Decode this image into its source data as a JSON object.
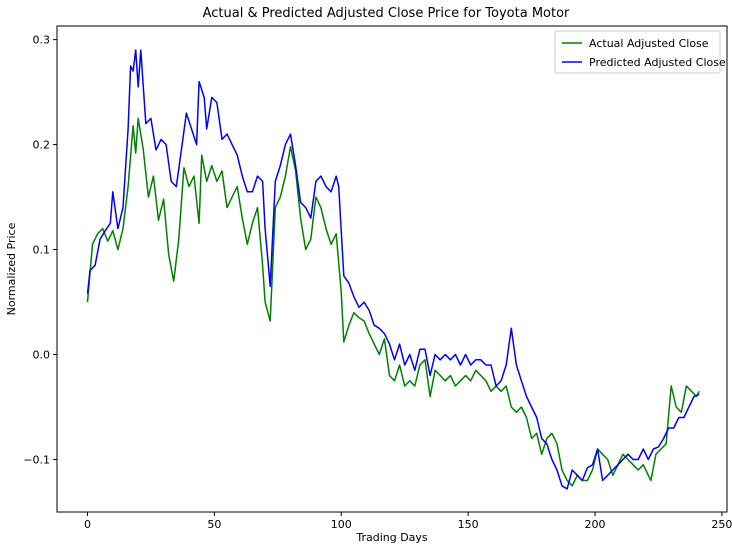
{
  "chart_data": {
    "type": "line",
    "title": "Actual & Predicted Adjusted Close Price for Toyota Motor",
    "xlabel": "Trading Days",
    "ylabel": "Normalized Price",
    "xlim": [
      -12,
      252
    ],
    "ylim": [
      -0.15,
      0.313
    ],
    "xticks": [
      0,
      50,
      100,
      150,
      200,
      250
    ],
    "xtick_labels": [
      "0",
      "50",
      "100",
      "150",
      "200",
      "250"
    ],
    "yticks": [
      -0.1,
      0.0,
      0.1,
      0.2,
      0.3
    ],
    "ytick_labels": [
      "−0.1",
      "0.0",
      "0.1",
      "0.2",
      "0.3"
    ],
    "grid": false,
    "legend_position": "top-right",
    "series": [
      {
        "name": "Actual Adjusted Close",
        "color": "#008000",
        "points": [
          [
            0,
            0.05
          ],
          [
            2,
            0.105
          ],
          [
            4,
            0.115
          ],
          [
            6,
            0.12
          ],
          [
            8,
            0.108
          ],
          [
            10,
            0.118
          ],
          [
            12,
            0.1
          ],
          [
            14,
            0.12
          ],
          [
            16,
            0.16
          ],
          [
            18,
            0.218
          ],
          [
            19,
            0.192
          ],
          [
            20,
            0.225
          ],
          [
            22,
            0.195
          ],
          [
            24,
            0.15
          ],
          [
            26,
            0.17
          ],
          [
            28,
            0.128
          ],
          [
            30,
            0.148
          ],
          [
            32,
            0.095
          ],
          [
            34,
            0.07
          ],
          [
            36,
            0.11
          ],
          [
            38,
            0.178
          ],
          [
            40,
            0.16
          ],
          [
            42,
            0.17
          ],
          [
            44,
            0.125
          ],
          [
            45,
            0.19
          ],
          [
            47,
            0.165
          ],
          [
            49,
            0.18
          ],
          [
            51,
            0.165
          ],
          [
            53,
            0.175
          ],
          [
            55,
            0.14
          ],
          [
            57,
            0.15
          ],
          [
            59,
            0.16
          ],
          [
            61,
            0.13
          ],
          [
            63,
            0.105
          ],
          [
            65,
            0.125
          ],
          [
            67,
            0.14
          ],
          [
            69,
            0.085
          ],
          [
            70,
            0.05
          ],
          [
            72,
            0.032
          ],
          [
            74,
            0.14
          ],
          [
            76,
            0.15
          ],
          [
            78,
            0.17
          ],
          [
            80,
            0.198
          ],
          [
            82,
            0.175
          ],
          [
            84,
            0.13
          ],
          [
            86,
            0.1
          ],
          [
            88,
            0.11
          ],
          [
            90,
            0.15
          ],
          [
            92,
            0.14
          ],
          [
            94,
            0.12
          ],
          [
            96,
            0.105
          ],
          [
            98,
            0.115
          ],
          [
            100,
            0.06
          ],
          [
            101,
            0.012
          ],
          [
            103,
            0.028
          ],
          [
            105,
            0.04
          ],
          [
            107,
            0.035
          ],
          [
            109,
            0.032
          ],
          [
            111,
            0.02
          ],
          [
            113,
            0.01
          ],
          [
            115,
            0.0
          ],
          [
            117,
            0.015
          ],
          [
            119,
            -0.02
          ],
          [
            121,
            -0.025
          ],
          [
            123,
            -0.01
          ],
          [
            125,
            -0.03
          ],
          [
            127,
            -0.025
          ],
          [
            129,
            -0.03
          ],
          [
            131,
            -0.01
          ],
          [
            133,
            -0.005
          ],
          [
            135,
            -0.04
          ],
          [
            137,
            -0.015
          ],
          [
            139,
            -0.02
          ],
          [
            141,
            -0.025
          ],
          [
            143,
            -0.02
          ],
          [
            145,
            -0.03
          ],
          [
            147,
            -0.025
          ],
          [
            149,
            -0.02
          ],
          [
            151,
            -0.025
          ],
          [
            153,
            -0.015
          ],
          [
            155,
            -0.02
          ],
          [
            157,
            -0.025
          ],
          [
            159,
            -0.035
          ],
          [
            161,
            -0.03
          ],
          [
            163,
            -0.035
          ],
          [
            165,
            -0.03
          ],
          [
            167,
            -0.05
          ],
          [
            169,
            -0.055
          ],
          [
            171,
            -0.05
          ],
          [
            173,
            -0.06
          ],
          [
            175,
            -0.08
          ],
          [
            177,
            -0.075
          ],
          [
            179,
            -0.095
          ],
          [
            181,
            -0.08
          ],
          [
            183,
            -0.075
          ],
          [
            185,
            -0.085
          ],
          [
            187,
            -0.11
          ],
          [
            189,
            -0.12
          ],
          [
            191,
            -0.125
          ],
          [
            193,
            -0.115
          ],
          [
            195,
            -0.12
          ],
          [
            197,
            -0.12
          ],
          [
            199,
            -0.11
          ],
          [
            201,
            -0.09
          ],
          [
            203,
            -0.095
          ],
          [
            205,
            -0.1
          ],
          [
            207,
            -0.115
          ],
          [
            209,
            -0.105
          ],
          [
            211,
            -0.095
          ],
          [
            213,
            -0.1
          ],
          [
            215,
            -0.105
          ],
          [
            217,
            -0.11
          ],
          [
            219,
            -0.105
          ],
          [
            221,
            -0.115
          ],
          [
            222,
            -0.12
          ],
          [
            224,
            -0.095
          ],
          [
            226,
            -0.09
          ],
          [
            228,
            -0.085
          ],
          [
            230,
            -0.03
          ],
          [
            232,
            -0.05
          ],
          [
            234,
            -0.055
          ],
          [
            236,
            -0.03
          ],
          [
            238,
            -0.035
          ],
          [
            240,
            -0.04
          ],
          [
            241,
            -0.035
          ]
        ]
      },
      {
        "name": "Predicted Adjusted Close",
        "color": "#0000ff",
        "points": [
          [
            0,
            0.058
          ],
          [
            1,
            0.08
          ],
          [
            3,
            0.085
          ],
          [
            5,
            0.11
          ],
          [
            7,
            0.118
          ],
          [
            9,
            0.125
          ],
          [
            10,
            0.155
          ],
          [
            12,
            0.12
          ],
          [
            14,
            0.14
          ],
          [
            16,
            0.215
          ],
          [
            17,
            0.275
          ],
          [
            18,
            0.27
          ],
          [
            19,
            0.29
          ],
          [
            20,
            0.255
          ],
          [
            21,
            0.29
          ],
          [
            23,
            0.22
          ],
          [
            25,
            0.225
          ],
          [
            27,
            0.195
          ],
          [
            29,
            0.205
          ],
          [
            31,
            0.2
          ],
          [
            33,
            0.165
          ],
          [
            35,
            0.16
          ],
          [
            37,
            0.195
          ],
          [
            39,
            0.23
          ],
          [
            41,
            0.215
          ],
          [
            43,
            0.2
          ],
          [
            44,
            0.26
          ],
          [
            46,
            0.245
          ],
          [
            47,
            0.215
          ],
          [
            49,
            0.245
          ],
          [
            51,
            0.24
          ],
          [
            53,
            0.205
          ],
          [
            55,
            0.21
          ],
          [
            57,
            0.2
          ],
          [
            59,
            0.19
          ],
          [
            61,
            0.17
          ],
          [
            63,
            0.155
          ],
          [
            65,
            0.155
          ],
          [
            67,
            0.17
          ],
          [
            69,
            0.165
          ],
          [
            70,
            0.12
          ],
          [
            72,
            0.065
          ],
          [
            74,
            0.165
          ],
          [
            76,
            0.18
          ],
          [
            78,
            0.2
          ],
          [
            80,
            0.21
          ],
          [
            82,
            0.18
          ],
          [
            84,
            0.145
          ],
          [
            86,
            0.14
          ],
          [
            88,
            0.13
          ],
          [
            90,
            0.165
          ],
          [
            92,
            0.17
          ],
          [
            94,
            0.16
          ],
          [
            96,
            0.155
          ],
          [
            98,
            0.17
          ],
          [
            99,
            0.16
          ],
          [
            101,
            0.075
          ],
          [
            103,
            0.068
          ],
          [
            105,
            0.055
          ],
          [
            107,
            0.045
          ],
          [
            109,
            0.05
          ],
          [
            111,
            0.042
          ],
          [
            113,
            0.028
          ],
          [
            115,
            0.025
          ],
          [
            117,
            0.02
          ],
          [
            119,
            0.01
          ],
          [
            121,
            -0.005
          ],
          [
            123,
            0.01
          ],
          [
            125,
            -0.01
          ],
          [
            127,
            0.0
          ],
          [
            129,
            -0.015
          ],
          [
            131,
            0.005
          ],
          [
            133,
            0.005
          ],
          [
            135,
            -0.02
          ],
          [
            137,
            0.0
          ],
          [
            139,
            -0.005
          ],
          [
            141,
            0.0
          ],
          [
            143,
            -0.005
          ],
          [
            145,
            0.0
          ],
          [
            147,
            -0.01
          ],
          [
            149,
            0.0
          ],
          [
            151,
            -0.01
          ],
          [
            153,
            -0.005
          ],
          [
            155,
            -0.005
          ],
          [
            157,
            -0.01
          ],
          [
            159,
            -0.01
          ],
          [
            161,
            -0.03
          ],
          [
            163,
            -0.025
          ],
          [
            165,
            -0.01
          ],
          [
            167,
            0.025
          ],
          [
            169,
            -0.01
          ],
          [
            171,
            -0.025
          ],
          [
            173,
            -0.04
          ],
          [
            175,
            -0.05
          ],
          [
            177,
            -0.06
          ],
          [
            179,
            -0.08
          ],
          [
            181,
            -0.085
          ],
          [
            183,
            -0.1
          ],
          [
            185,
            -0.11
          ],
          [
            187,
            -0.125
          ],
          [
            189,
            -0.128
          ],
          [
            191,
            -0.11
          ],
          [
            193,
            -0.115
          ],
          [
            195,
            -0.12
          ],
          [
            197,
            -0.108
          ],
          [
            199,
            -0.105
          ],
          [
            201,
            -0.09
          ],
          [
            203,
            -0.12
          ],
          [
            205,
            -0.115
          ],
          [
            207,
            -0.11
          ],
          [
            209,
            -0.105
          ],
          [
            211,
            -0.1
          ],
          [
            213,
            -0.095
          ],
          [
            215,
            -0.1
          ],
          [
            217,
            -0.1
          ],
          [
            219,
            -0.09
          ],
          [
            221,
            -0.1
          ],
          [
            223,
            -0.09
          ],
          [
            225,
            -0.088
          ],
          [
            227,
            -0.08
          ],
          [
            229,
            -0.07
          ],
          [
            231,
            -0.07
          ],
          [
            233,
            -0.06
          ],
          [
            235,
            -0.06
          ],
          [
            237,
            -0.05
          ],
          [
            239,
            -0.04
          ],
          [
            241,
            -0.038
          ]
        ]
      }
    ]
  }
}
